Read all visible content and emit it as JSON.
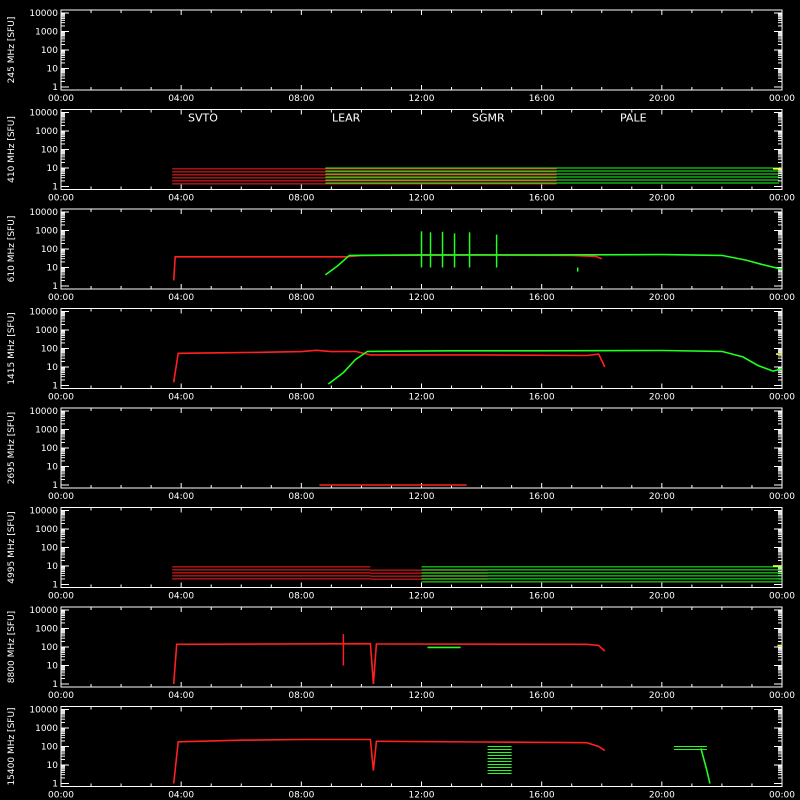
{
  "chart_data": {
    "type": "scatter",
    "x_ticks": [
      "00:00",
      "04:00",
      "08:00",
      "12:00",
      "16:00",
      "20:00",
      "00:00"
    ],
    "x_range_hours": [
      0,
      24
    ],
    "y_scale": "log",
    "y_ticks": [
      "10000",
      "1000",
      "100",
      "10",
      "1"
    ],
    "y_range": [
      1,
      10000
    ],
    "ylabel_unit": "[SFU]",
    "legend": [
      {
        "name": "SVTO",
        "color": "#ff2020"
      },
      {
        "name": "LEAR",
        "color": "#20e0ff"
      },
      {
        "name": "SGMR",
        "color": "#20ff20"
      },
      {
        "name": "PALE",
        "color": "#ffff40"
      }
    ],
    "panels": [
      {
        "freq": "245 MHz",
        "series": []
      },
      {
        "freq": "410 MHz",
        "series": [
          {
            "name": "SVTO",
            "kind": "band",
            "segments": [
              [
                3.7,
                16.5,
                1.2,
                9
              ]
            ]
          },
          {
            "name": "SGMR",
            "kind": "band",
            "segments": [
              [
                8.8,
                23.9,
                1.5,
                10
              ]
            ]
          },
          {
            "name": "PALE",
            "kind": "line",
            "points": [
              [
                23.7,
                9
              ],
              [
                24.0,
                9
              ]
            ]
          }
        ]
      },
      {
        "freq": "610 MHz",
        "series": [
          {
            "name": "SVTO",
            "kind": "line",
            "points": [
              [
                3.75,
                2
              ],
              [
                3.8,
                38
              ],
              [
                6,
                38
              ],
              [
                9.5,
                38
              ],
              [
                10,
                45
              ],
              [
                14,
                48
              ],
              [
                17,
                45
              ],
              [
                17.8,
                40
              ],
              [
                18,
                30
              ]
            ]
          },
          {
            "name": "SGMR",
            "kind": "line",
            "points": [
              [
                8.8,
                4
              ],
              [
                9.2,
                12
              ],
              [
                9.6,
                45
              ],
              [
                12,
                48
              ],
              [
                16,
                48
              ],
              [
                20,
                50
              ],
              [
                22,
                45
              ],
              [
                22.8,
                25
              ],
              [
                23.3,
                15
              ],
              [
                24,
                8
              ]
            ]
          },
          {
            "name": "SGMR",
            "kind": "spikes",
            "points": [
              [
                12.0,
                900
              ],
              [
                12.3,
                800
              ],
              [
                12.7,
                850
              ],
              [
                13.1,
                700
              ],
              [
                13.6,
                800
              ],
              [
                14.5,
                600
              ],
              [
                17.2,
                6
              ]
            ]
          }
        ]
      },
      {
        "freq": "1415 MHz",
        "series": [
          {
            "name": "SVTO",
            "kind": "line",
            "points": [
              [
                3.75,
                1.5
              ],
              [
                3.9,
                55
              ],
              [
                6,
                60
              ],
              [
                8,
                68
              ],
              [
                8.5,
                80
              ],
              [
                9,
                68
              ],
              [
                9.8,
                70
              ],
              [
                10.3,
                45
              ],
              [
                14,
                45
              ],
              [
                17.5,
                42
              ],
              [
                17.9,
                50
              ],
              [
                18.1,
                10
              ]
            ]
          },
          {
            "name": "SGMR",
            "kind": "line",
            "points": [
              [
                8.9,
                1.2
              ],
              [
                9.4,
                5
              ],
              [
                9.8,
                25
              ],
              [
                10.2,
                70
              ],
              [
                13,
                75
              ],
              [
                16,
                75
              ],
              [
                20,
                78
              ],
              [
                22,
                70
              ],
              [
                22.7,
                35
              ],
              [
                23.2,
                12
              ],
              [
                23.7,
                6
              ],
              [
                24,
                8
              ]
            ]
          },
          {
            "name": "PALE",
            "kind": "line",
            "points": [
              [
                23.8,
                50
              ],
              [
                24.0,
                50
              ]
            ]
          }
        ]
      },
      {
        "freq": "2695 MHz",
        "series": [
          {
            "name": "SVTO",
            "kind": "line",
            "points": [
              [
                8.6,
                1
              ],
              [
                13.5,
                1
              ]
            ]
          }
        ]
      },
      {
        "freq": "4995 MHz",
        "series": [
          {
            "name": "SVTO",
            "kind": "band",
            "segments": [
              [
                3.7,
                10.3,
                1.5,
                9
              ],
              [
                10.3,
                14.2,
                1.5,
                6
              ]
            ]
          },
          {
            "name": "SGMR",
            "kind": "band",
            "segments": [
              [
                12.0,
                24.0,
                1.3,
                9
              ]
            ]
          },
          {
            "name": "PALE",
            "kind": "line",
            "points": [
              [
                23.7,
                10
              ],
              [
                24.0,
                10
              ]
            ]
          }
        ]
      },
      {
        "freq": "8800 MHz",
        "series": [
          {
            "name": "SVTO",
            "kind": "line",
            "points": [
              [
                3.75,
                1
              ],
              [
                3.85,
                140
              ],
              [
                10.3,
                150
              ],
              [
                10.4,
                1
              ],
              [
                10.5,
                145
              ],
              [
                17.5,
                140
              ],
              [
                17.9,
                120
              ],
              [
                18.1,
                60
              ]
            ]
          },
          {
            "name": "SVTO",
            "kind": "spikes",
            "points": [
              [
                9.4,
                500
              ]
            ]
          },
          {
            "name": "SGMR",
            "kind": "line",
            "points": [
              [
                12.2,
                95
              ],
              [
                13.3,
                95
              ]
            ]
          },
          {
            "name": "PALE",
            "kind": "line",
            "points": [
              [
                23.85,
                120
              ],
              [
                24.0,
                120
              ]
            ]
          }
        ]
      },
      {
        "freq": "15400 MHz",
        "series": [
          {
            "name": "SVTO",
            "kind": "line",
            "points": [
              [
                3.75,
                1
              ],
              [
                3.9,
                180
              ],
              [
                6,
                220
              ],
              [
                8,
                240
              ],
              [
                10.3,
                240
              ],
              [
                10.4,
                5
              ],
              [
                10.5,
                190
              ],
              [
                14,
                175
              ],
              [
                17.5,
                160
              ],
              [
                17.9,
                100
              ],
              [
                18.1,
                60
              ]
            ]
          },
          {
            "name": "SGMR",
            "kind": "band",
            "segments": [
              [
                14.2,
                15.0,
                3,
                100
              ],
              [
                20.4,
                21.5,
                50,
                100
              ]
            ]
          },
          {
            "name": "SGMR",
            "kind": "line",
            "points": [
              [
                21.3,
                80
              ],
              [
                21.5,
                5
              ],
              [
                21.6,
                1
              ]
            ]
          }
        ]
      }
    ]
  }
}
